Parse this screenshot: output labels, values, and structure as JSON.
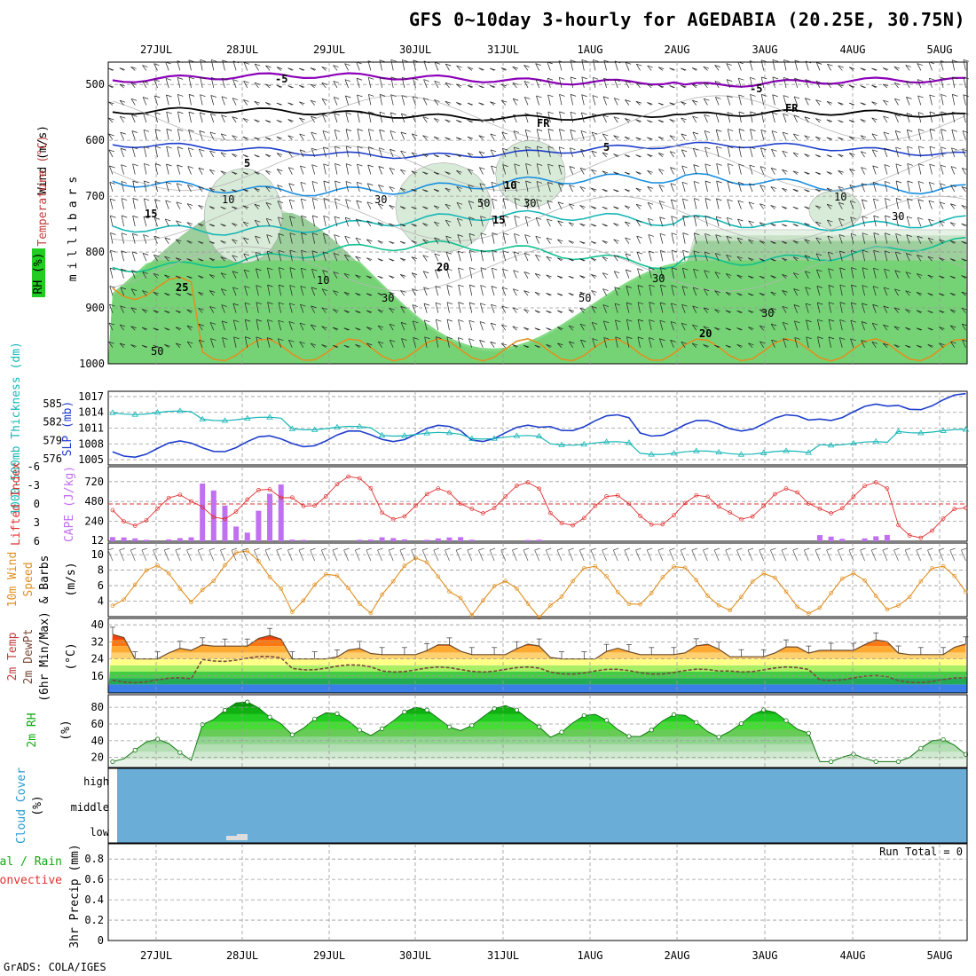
{
  "title": "GFS 0~10day 3-hourly for AGEDABIA (20.25E, 30.75N)",
  "footer": "GrADS: COLA/IGES",
  "colors": {
    "purple": "#8b00b8",
    "black": "#000000",
    "blue": "#1f3fcc",
    "mid_blue": "#1a8fe0",
    "teal": "#17b6b6",
    "green_teal": "#10c090",
    "orange": "#e09020",
    "red": "#e03030",
    "cloud": "#6aaed8",
    "rh_green": "#22cc22"
  },
  "date_labels": [
    "27JUL",
    "28JUL",
    "29JUL",
    "30JUL",
    "31JUL",
    "1AUG",
    "2AUG",
    "3AUG",
    "4AUG",
    "5AUG"
  ],
  "upper_panel": {
    "ylabels_left": [
      "Wind (m/s)",
      "Temperature (°C)",
      "RH (%)"
    ],
    "ylabel_right": "millibars",
    "pressure_ticks": [
      "500",
      "600",
      "700",
      "800",
      "900",
      "1000"
    ],
    "contour_labels": [
      {
        "text": "-5",
        "color": "purple"
      },
      {
        "text": "-5",
        "color": "purple"
      },
      {
        "text": "FR",
        "color": "black"
      },
      {
        "text": "FR",
        "color": "black"
      },
      {
        "text": "5",
        "color": "blue"
      },
      {
        "text": "5",
        "color": "blue"
      },
      {
        "text": "10",
        "color": "mid_blue"
      },
      {
        "text": "15",
        "color": "teal"
      },
      {
        "text": "15",
        "color": "teal"
      },
      {
        "text": "20",
        "color": "green_teal"
      },
      {
        "text": "20",
        "color": "green_teal"
      },
      {
        "text": "25",
        "color": "orange"
      }
    ],
    "rh_labels": [
      "10",
      "30",
      "50",
      "30",
      "10",
      "30",
      "50",
      "30",
      "10",
      "30",
      "50",
      "30"
    ]
  },
  "slp_panel": {
    "ylabel_left": "1000-500mb Thickness (dm)",
    "ylabel_right": "SLP (mb)",
    "left_ticks": [
      "585",
      "582",
      "579",
      "576"
    ],
    "right_ticks": [
      "1017",
      "1014",
      "1011",
      "1008",
      "1005"
    ]
  },
  "cape_panel": {
    "ylabel_left": "Lifted Index",
    "ylabel_right": "CAPE (J/kg)",
    "left_ticks": [
      "-6",
      "-3",
      "0",
      "3",
      "6"
    ],
    "right_ticks": [
      "720",
      "480",
      "240",
      "12"
    ]
  },
  "wind_panel": {
    "ylabel_left": "10m Wind Speed & Barbs",
    "ylabel_right": "(m/s)",
    "ticks": [
      "10",
      "8",
      "6",
      "4"
    ]
  },
  "temp_panel": {
    "ylabel": "2m Temp 2m DewPt (6hr Min/Max) (°C)",
    "ticks": [
      "40",
      "32",
      "24",
      "16"
    ]
  },
  "rh_panel": {
    "ylabel": "2m RH (%)",
    "ticks": [
      "80",
      "60",
      "40",
      "20"
    ]
  },
  "cloud_panel": {
    "ylabel": "Cloud Cover (%)",
    "levels": [
      "high",
      "middle",
      "low"
    ]
  },
  "precip_panel": {
    "ylabel_a": "Total / Rain",
    "ylabel_b": "Convective",
    "ylabel_c": "3hr Precip (mm)",
    "ticks": [
      "0.8",
      "0.6",
      "0.4",
      "0.2",
      "0"
    ],
    "run_total": "Run Total = 0"
  },
  "chart_data": {
    "type": "line",
    "x": [
      "27JUL",
      "28JUL",
      "29JUL",
      "30JUL",
      "31JUL",
      "1AUG",
      "2AUG",
      "3AUG",
      "4AUG",
      "5AUG"
    ],
    "series": [
      {
        "name": "SLP (mb)",
        "values": [
          1007,
          1008,
          1009,
          1010,
          1010,
          1012,
          1011,
          1012,
          1014,
          1016
        ]
      },
      {
        "name": "1000-500mb Thickness (dm)",
        "values": [
          583.5,
          582.5,
          581,
          580,
          579.5,
          578.5,
          577,
          577,
          578.5,
          580.5
        ]
      },
      {
        "name": "Lifted Index",
        "values": [
          1,
          0,
          -2,
          0,
          -1,
          1,
          1,
          0,
          -1,
          3
        ]
      },
      {
        "name": "CAPE (J/kg)",
        "values": [
          50,
          700,
          20,
          50,
          20,
          0,
          0,
          0,
          80,
          0
        ]
      },
      {
        "name": "10m Wind Speed (m/s)",
        "values": [
          6,
          8,
          5,
          7,
          4,
          6,
          6,
          5,
          5,
          6
        ]
      },
      {
        "name": "2m Temp (°C)",
        "values": [
          28,
          34,
          28,
          30,
          30,
          28,
          30,
          29,
          32,
          30
        ]
      },
      {
        "name": "2m DewPt (°C)",
        "values": [
          14,
          24,
          20,
          19,
          19,
          18,
          18,
          19,
          15,
          14
        ]
      },
      {
        "name": "2m RH (%)",
        "values": [
          40,
          85,
          72,
          78,
          80,
          70,
          70,
          75,
          22,
          40
        ]
      },
      {
        "name": "3hr Precip (mm)",
        "values": [
          0,
          0,
          0,
          0,
          0,
          0,
          0,
          0,
          0,
          0
        ]
      }
    ],
    "ylim_slp": [
      1005,
      1017
    ],
    "ylim_rh": [
      10,
      90
    ],
    "ylim_temp": [
      10,
      42
    ]
  }
}
